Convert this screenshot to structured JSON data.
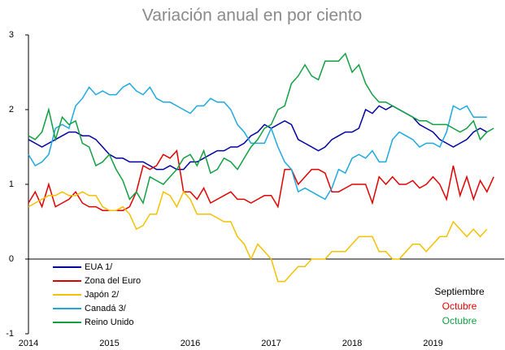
{
  "chart_data": {
    "type": "line",
    "subtitle": "Variación anual en por ciento",
    "categories": [
      "2014",
      null,
      null,
      null,
      null,
      null,
      null,
      null,
      null,
      null,
      null,
      null,
      "2015",
      null,
      null,
      null,
      null,
      null,
      null,
      null,
      null,
      null,
      null,
      null,
      "2016",
      null,
      null,
      null,
      null,
      null,
      null,
      null,
      null,
      null,
      null,
      null,
      "2017",
      null,
      null,
      null,
      null,
      null,
      null,
      null,
      null,
      null,
      null,
      null,
      "2018",
      null,
      null,
      null,
      null,
      null,
      null,
      null,
      null,
      null,
      null,
      null,
      "2019",
      null,
      null,
      null,
      null,
      null,
      null,
      null,
      null,
      null
    ],
    "series": [
      {
        "name": "EUA 1/",
        "color": "#0000a0",
        "values": [
          1.6,
          1.55,
          1.5,
          1.55,
          1.6,
          1.65,
          1.7,
          1.7,
          1.65,
          1.65,
          1.6,
          1.5,
          1.4,
          1.35,
          1.35,
          1.3,
          1.3,
          1.3,
          1.25,
          1.2,
          1.2,
          1.25,
          1.2,
          1.2,
          1.3,
          1.3,
          1.35,
          1.4,
          1.45,
          1.45,
          1.5,
          1.5,
          1.55,
          1.65,
          1.7,
          1.8,
          1.75,
          1.8,
          1.85,
          1.8,
          1.6,
          1.55,
          1.5,
          1.45,
          1.5,
          1.6,
          1.65,
          1.7,
          1.7,
          1.75,
          2.0,
          1.95,
          2.05,
          2.0,
          2.05,
          2.0,
          1.95,
          1.9,
          1.8,
          1.75,
          1.7,
          1.6,
          1.55,
          1.5,
          1.55,
          1.6,
          1.7,
          1.75,
          1.7,
          null
        ]
      },
      {
        "name": "Zona del Euro",
        "color": "#e00000",
        "values": [
          0.75,
          0.9,
          0.7,
          1.0,
          0.7,
          0.75,
          0.8,
          0.9,
          0.75,
          0.7,
          0.7,
          0.65,
          0.65,
          0.65,
          0.65,
          0.7,
          0.9,
          1.25,
          1.2,
          1.25,
          1.4,
          1.35,
          1.45,
          0.9,
          0.9,
          0.8,
          0.95,
          0.75,
          0.8,
          0.85,
          0.9,
          0.8,
          0.8,
          0.75,
          0.8,
          0.85,
          0.85,
          0.7,
          1.2,
          1.2,
          1.0,
          1.1,
          1.2,
          1.2,
          1.15,
          0.9,
          0.9,
          0.95,
          1.0,
          1.0,
          1.0,
          0.75,
          1.1,
          1.0,
          1.1,
          1.0,
          1.0,
          1.05,
          0.95,
          1.0,
          1.1,
          1.0,
          0.8,
          1.25,
          0.85,
          1.1,
          0.8,
          1.05,
          0.9,
          1.1
        ]
      },
      {
        "name": "Japón 2/",
        "color": "#f5c000",
        "values": [
          0.7,
          0.75,
          0.8,
          0.85,
          0.85,
          0.9,
          0.85,
          0.85,
          0.9,
          0.85,
          0.85,
          0.7,
          0.65,
          0.65,
          0.7,
          0.6,
          0.4,
          0.45,
          0.6,
          0.6,
          0.9,
          0.85,
          0.7,
          0.9,
          0.8,
          0.6,
          0.6,
          0.6,
          0.55,
          0.5,
          0.5,
          0.3,
          0.2,
          0.0,
          0.2,
          0.1,
          0.0,
          -0.3,
          -0.3,
          -0.2,
          -0.1,
          -0.1,
          0.0,
          0.0,
          0.0,
          0.1,
          0.1,
          0.1,
          0.2,
          0.3,
          0.3,
          0.3,
          0.1,
          0.1,
          0.0,
          0.0,
          0.1,
          0.2,
          0.2,
          0.1,
          0.2,
          0.3,
          0.3,
          0.5,
          0.4,
          0.3,
          0.4,
          0.3,
          0.4,
          null
        ]
      },
      {
        "name": "Canadá 3/",
        "color": "#1ea8e0",
        "values": [
          1.4,
          1.25,
          1.3,
          1.4,
          1.75,
          1.8,
          1.75,
          2.05,
          2.15,
          2.3,
          2.2,
          2.25,
          2.2,
          2.2,
          2.3,
          2.35,
          2.25,
          2.2,
          2.3,
          2.15,
          2.1,
          2.1,
          2.05,
          2.0,
          1.95,
          2.05,
          2.05,
          2.15,
          2.1,
          2.1,
          2.0,
          1.8,
          1.7,
          1.55,
          1.55,
          1.55,
          1.75,
          1.5,
          1.3,
          1.2,
          0.9,
          0.95,
          0.9,
          0.85,
          0.8,
          0.95,
          1.2,
          1.15,
          1.35,
          1.4,
          1.35,
          1.45,
          1.3,
          1.3,
          1.6,
          1.7,
          1.65,
          1.6,
          1.5,
          1.55,
          1.55,
          1.5,
          1.7,
          2.05,
          2.0,
          2.05,
          1.9,
          1.9,
          1.9,
          null
        ]
      },
      {
        "name": "Reino Unido",
        "color": "#10a040",
        "values": [
          1.65,
          1.6,
          1.7,
          2.0,
          1.6,
          1.9,
          1.8,
          1.85,
          1.55,
          1.5,
          1.25,
          1.3,
          1.4,
          1.2,
          1.05,
          0.8,
          0.9,
          0.75,
          1.1,
          1.05,
          1.0,
          1.1,
          1.2,
          1.35,
          1.4,
          1.25,
          1.45,
          1.15,
          1.2,
          1.35,
          1.3,
          1.2,
          1.35,
          1.5,
          1.6,
          1.75,
          1.8,
          2.0,
          2.05,
          2.35,
          2.45,
          2.6,
          2.45,
          2.4,
          2.65,
          2.65,
          2.65,
          2.75,
          2.5,
          2.6,
          2.35,
          2.2,
          2.1,
          2.1,
          2.05,
          2.0,
          1.95,
          1.9,
          1.85,
          1.85,
          1.8,
          1.8,
          1.8,
          1.75,
          1.7,
          1.75,
          1.85,
          1.6,
          1.7,
          1.75
        ]
      }
    ],
    "annotations": [
      {
        "text": "Septiembre",
        "color": "#000000"
      },
      {
        "text": "Octubre",
        "color": "#e00000"
      },
      {
        "text": "Octubre",
        "color": "#10a040"
      }
    ],
    "ylim": [
      -1,
      3
    ],
    "yticks": [
      -1,
      0,
      1,
      2,
      3
    ]
  }
}
